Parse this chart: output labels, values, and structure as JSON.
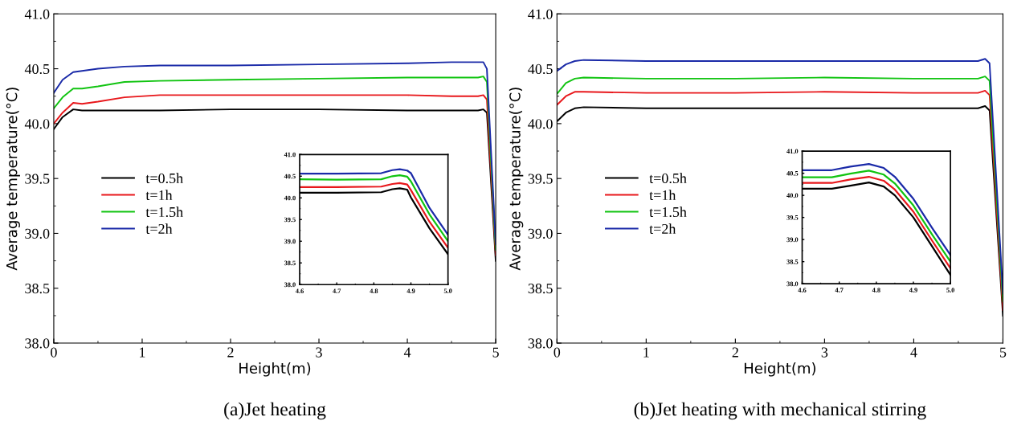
{
  "chart_data": [
    {
      "type": "line",
      "title": "(a)Jet heating",
      "xlabel": "Height(m)",
      "ylabel": "Average temperature(°C)",
      "xlim": [
        0,
        5
      ],
      "ylim": [
        38.0,
        41.0
      ],
      "xticks": [
        0,
        1,
        2,
        3,
        4,
        5
      ],
      "yticks": [
        {
          "value": 38.0,
          "label": "38.0"
        },
        38.5,
        {
          "value": 39.0,
          "label": "39.0"
        },
        39.5,
        {
          "value": 40.0,
          "label": "40.0"
        },
        40.5,
        {
          "value": 41.0,
          "label": "41.0"
        }
      ],
      "legend": "left",
      "grid": false,
      "marker": "none",
      "line_style": "solid",
      "x": [
        0,
        0.1,
        0.22,
        0.32,
        0.5,
        0.8,
        1.2,
        2,
        3,
        4,
        4.5,
        4.8,
        4.86,
        4.9,
        5.0
      ],
      "series": [
        {
          "name": "t=0.5h",
          "color": "#000000",
          "values": [
            39.95,
            40.06,
            40.13,
            40.12,
            40.12,
            40.12,
            40.12,
            40.13,
            40.13,
            40.12,
            40.12,
            40.12,
            40.13,
            40.1,
            38.75
          ]
        },
        {
          "name": "t=1h",
          "color": "#e8171b",
          "values": [
            40.0,
            40.1,
            40.19,
            40.18,
            40.2,
            40.24,
            40.26,
            40.26,
            40.26,
            40.26,
            40.25,
            40.25,
            40.26,
            40.22,
            38.8
          ]
        },
        {
          "name": "t=1.5h",
          "color": "#11c411",
          "values": [
            40.14,
            40.24,
            40.32,
            40.32,
            40.34,
            40.38,
            40.39,
            40.4,
            40.41,
            40.42,
            40.42,
            40.42,
            40.43,
            40.38,
            38.85
          ]
        },
        {
          "name": "t=2h",
          "color": "#1a2aa8",
          "values": [
            40.28,
            40.4,
            40.47,
            40.48,
            40.5,
            40.52,
            40.53,
            40.53,
            40.54,
            40.55,
            40.56,
            40.56,
            40.56,
            40.5,
            38.9
          ]
        }
      ]
    },
    {
      "type": "line",
      "xlim": [
        4.6,
        5.0
      ],
      "ylim": [
        38.0,
        41.0
      ],
      "xticks": [
        4.6,
        4.7,
        4.8,
        4.9,
        {
          "value": 5.0,
          "label": "5.0"
        }
      ],
      "yticks": [
        {
          "value": 38.0,
          "label": "38.0"
        },
        38.5,
        {
          "value": 39.0,
          "label": "39.0"
        },
        39.5,
        {
          "value": 40.0,
          "label": "40.0"
        },
        40.5,
        {
          "value": 41.0,
          "label": "41.0"
        }
      ],
      "grid": false,
      "marker": "none",
      "line_style": "solid",
      "x": [
        4.6,
        4.7,
        4.82,
        4.85,
        4.87,
        4.89,
        4.9,
        4.95,
        5.0
      ],
      "series": [
        {
          "color": "#000000",
          "values": [
            40.12,
            40.12,
            40.13,
            40.2,
            40.22,
            40.19,
            40.01,
            39.3,
            38.7
          ]
        },
        {
          "color": "#e8171b",
          "values": [
            40.25,
            40.25,
            40.26,
            40.32,
            40.34,
            40.31,
            40.18,
            39.45,
            38.85
          ]
        },
        {
          "color": "#11c411",
          "values": [
            40.43,
            40.42,
            40.43,
            40.5,
            40.52,
            40.49,
            40.38,
            39.62,
            39.0
          ]
        },
        {
          "color": "#1a2aa8",
          "values": [
            40.56,
            40.56,
            40.57,
            40.64,
            40.66,
            40.63,
            40.57,
            39.77,
            39.15
          ]
        }
      ]
    },
    {
      "type": "line",
      "title": "(b)Jet heating with mechanical stirring",
      "xlabel": "Height(m)",
      "ylabel": "Average temperature(°C)",
      "xlim": [
        0,
        5
      ],
      "ylim": [
        38.0,
        41.0
      ],
      "xticks": [
        0,
        1,
        2,
        3,
        4,
        5
      ],
      "yticks": [
        {
          "value": 38.0,
          "label": "38.0"
        },
        38.5,
        {
          "value": 39.0,
          "label": "39.0"
        },
        39.5,
        {
          "value": 40.0,
          "label": "40.0"
        },
        40.5,
        {
          "value": 41.0,
          "label": "41.0"
        }
      ],
      "legend": "left",
      "grid": false,
      "marker": "none",
      "line_style": "solid",
      "x": [
        0,
        0.1,
        0.2,
        0.3,
        1.0,
        2,
        3,
        4,
        4.6,
        4.72,
        4.8,
        4.85,
        5.0
      ],
      "series": [
        {
          "name": "t=0.5h",
          "color": "#000000",
          "values": [
            40.02,
            40.1,
            40.14,
            40.15,
            40.14,
            40.14,
            40.14,
            40.14,
            40.14,
            40.14,
            40.16,
            40.12,
            38.25
          ]
        },
        {
          "name": "t=1h",
          "color": "#e8171b",
          "values": [
            40.17,
            40.25,
            40.29,
            40.29,
            40.28,
            40.28,
            40.29,
            40.28,
            40.28,
            40.28,
            40.3,
            40.26,
            38.3
          ]
        },
        {
          "name": "t=1.5h",
          "color": "#11c411",
          "values": [
            40.27,
            40.37,
            40.41,
            40.42,
            40.41,
            40.41,
            40.42,
            40.41,
            40.41,
            40.41,
            40.43,
            40.39,
            38.38
          ]
        },
        {
          "name": "t=2h",
          "color": "#1a2aa8",
          "values": [
            40.48,
            40.54,
            40.57,
            40.58,
            40.57,
            40.57,
            40.57,
            40.57,
            40.57,
            40.57,
            40.59,
            40.55,
            38.45
          ]
        }
      ]
    },
    {
      "type": "line",
      "xlim": [
        4.6,
        5.0
      ],
      "ylim": [
        38.0,
        41.0
      ],
      "xticks": [
        4.6,
        4.7,
        4.8,
        4.9,
        {
          "value": 5.0,
          "label": "5.0"
        }
      ],
      "yticks": [
        {
          "value": 38.0,
          "label": "38.0"
        },
        38.5,
        {
          "value": 39.0,
          "label": "39.0"
        },
        39.5,
        {
          "value": 40.0,
          "label": "40.0"
        },
        40.5,
        {
          "value": 41.0,
          "label": "41.0"
        }
      ],
      "grid": false,
      "marker": "none",
      "line_style": "solid",
      "x": [
        4.6,
        4.68,
        4.73,
        4.78,
        4.82,
        4.85,
        4.9,
        4.95,
        5.0
      ],
      "series": [
        {
          "color": "#000000",
          "values": [
            40.15,
            40.15,
            40.22,
            40.29,
            40.2,
            40.0,
            39.5,
            38.85,
            38.2
          ]
        },
        {
          "color": "#e8171b",
          "values": [
            40.28,
            40.28,
            40.36,
            40.42,
            40.33,
            40.13,
            39.63,
            38.98,
            38.35
          ]
        },
        {
          "color": "#11c411",
          "values": [
            40.41,
            40.41,
            40.49,
            40.56,
            40.47,
            40.27,
            39.77,
            39.12,
            38.5
          ]
        },
        {
          "color": "#1a2aa8",
          "values": [
            40.57,
            40.57,
            40.65,
            40.71,
            40.62,
            40.42,
            39.92,
            39.27,
            38.65
          ]
        }
      ]
    }
  ]
}
